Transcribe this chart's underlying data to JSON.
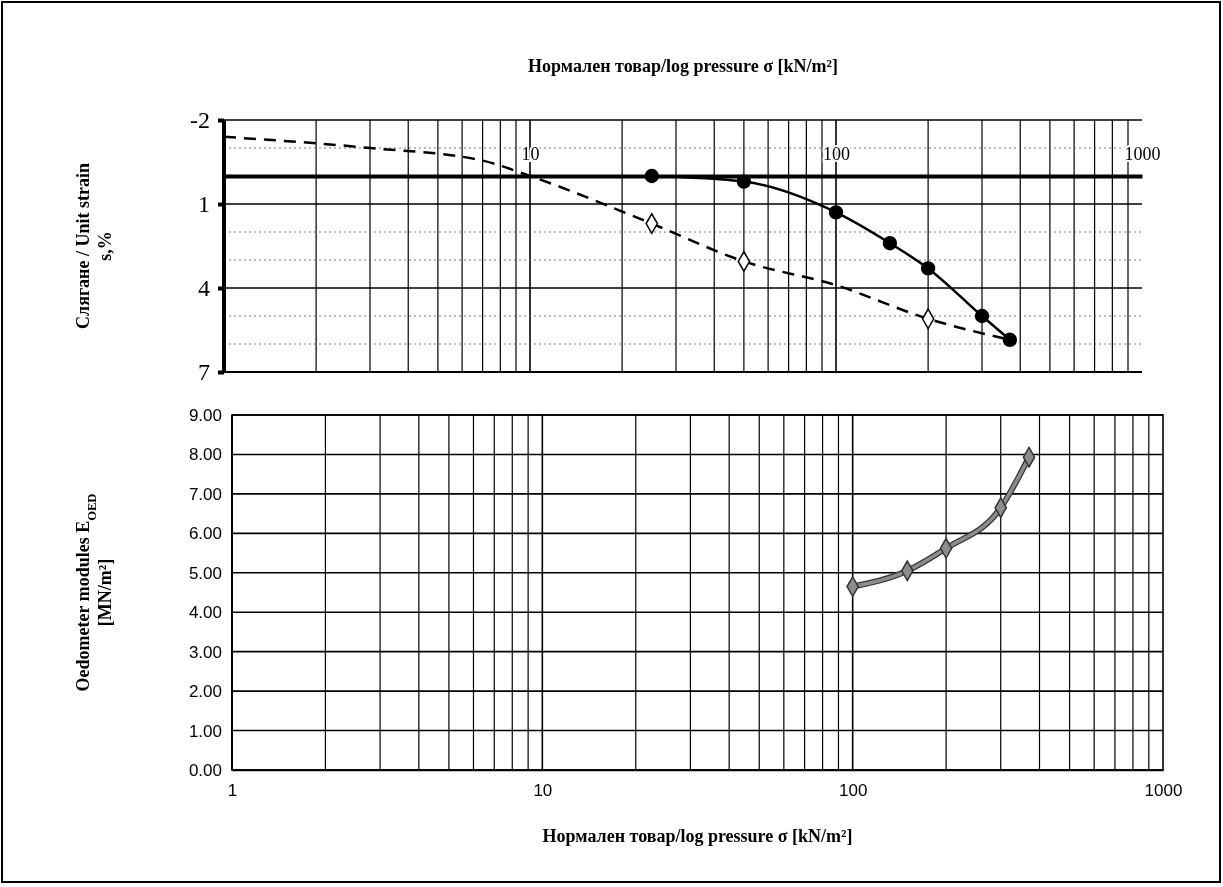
{
  "chart_data": [
    {
      "type": "line",
      "xlabel": "Нормален товар/log pressure σ [kN/m²]",
      "ylabel": "Слягане / Unit strain\ns,%",
      "log": "x",
      "xlim": [
        1,
        1000
      ],
      "xticks": [
        10,
        100,
        1000
      ],
      "ylim": [
        7,
        -2
      ],
      "yticks": [
        -2,
        1,
        4,
        7
      ],
      "grid": true,
      "series": [
        {
          "type": "line",
          "color": "#000000",
          "marker": "circle",
          "line_style": "solid",
          "x": [
            25,
            50,
            100,
            150,
            200,
            300,
            370
          ],
          "values": [
            0,
            0.2,
            1.3,
            2.4,
            3.3,
            5.0,
            5.85
          ]
        },
        {
          "type": "line",
          "color": "#000000",
          "marker": "none",
          "line_style": "dashed",
          "x": [
            1,
            3,
            7,
            10,
            25,
            50,
            100,
            200,
            370
          ],
          "values": [
            -1.4,
            -1.0,
            -0.55,
            0,
            1.7,
            3.05,
            3.9,
            5.1,
            5.85
          ]
        },
        {
          "type": "scatter",
          "color": "#000000",
          "marker": "diamond",
          "x": [
            25,
            50,
            200
          ],
          "values": [
            1.7,
            3.05,
            5.1
          ]
        }
      ]
    },
    {
      "type": "line",
      "xlabel": "Нормален товар/log pressure σ [kN/m²]",
      "ylabel": "Oedometer modules E$_{OED}$\n[MN/m²]",
      "log": "x",
      "xlim": [
        1,
        1000
      ],
      "xticks": [
        1,
        10,
        100,
        1000
      ],
      "ylim": [
        0,
        9
      ],
      "yticks": [
        {
          "value": 0,
          "label": "0.00"
        },
        {
          "value": 1,
          "label": "1.00"
        },
        {
          "value": 2,
          "label": "2.00"
        },
        {
          "value": 3,
          "label": "3.00"
        },
        {
          "value": 4,
          "label": "4.00"
        },
        {
          "value": 5,
          "label": "5.00"
        },
        {
          "value": 6,
          "label": "6.00"
        },
        {
          "value": 7,
          "label": "7.00"
        },
        {
          "value": 8,
          "label": "8.00"
        },
        {
          "value": 9,
          "label": "9.00"
        }
      ],
      "grid": true,
      "series": [
        {
          "type": "line",
          "color": "#8c8c8c",
          "marker": "diamond",
          "line_style": "solid",
          "x": [
            100,
            150,
            200,
            300,
            370
          ],
          "values": [
            4.65,
            5.05,
            5.62,
            6.65,
            7.93
          ]
        }
      ]
    }
  ]
}
